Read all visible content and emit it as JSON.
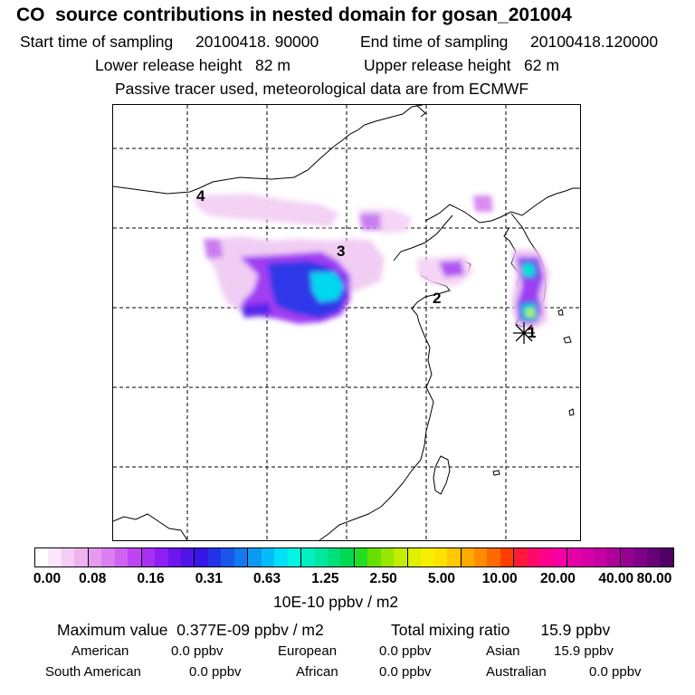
{
  "title": "CO  source contributions in nested domain for gosan_201004",
  "sampling": {
    "start_label": "Start time of sampling",
    "start_value": "20100418. 90000",
    "end_label": "End time of sampling",
    "end_value": "20100418.120000"
  },
  "release": {
    "lower": "Lower release height   82 m",
    "upper": "Upper release height   62 m"
  },
  "note": "Passive tracer used, meteorological data are from ECMWF",
  "map": {
    "labels": [
      "4",
      "3",
      "2",
      "1"
    ],
    "receptor_marker": "asterisk-icon"
  },
  "colorbar": {
    "ticks": [
      "0.00",
      "0.08",
      "0.16",
      "0.31",
      "0.63",
      "1.25",
      "2.50",
      "5.00",
      "10.00",
      "20.00",
      "40.00",
      "80.00"
    ],
    "unit": "10E-10 ppbv / m2",
    "colors": [
      "#ffffff",
      "#fbe6fb",
      "#f5ccf5",
      "#efb3f0",
      "#e79aee",
      "#dc7ff0",
      "#cf63f1",
      "#be45f3",
      "#a830f3",
      "#8e1ef2",
      "#6e15ee",
      "#4e14ea",
      "#3516e6",
      "#2531e8",
      "#1a56ea",
      "#1279ee",
      "#0b9af2",
      "#06bcf6",
      "#00e0f7",
      "#00f5e4",
      "#00f0c0",
      "#00e8a0",
      "#00e07a",
      "#00d850",
      "#22dd22",
      "#66e000",
      "#99e600",
      "#c2ec00",
      "#e0f000",
      "#f7f000",
      "#ffe100",
      "#ffc800",
      "#ffaa00",
      "#ff8c00",
      "#ff6a00",
      "#ff3d00",
      "#ff1a3c",
      "#ff0a6a",
      "#ff0090",
      "#f500a5",
      "#e600aa",
      "#d600a8",
      "#c400a2",
      "#b0009c",
      "#980094",
      "#80008a",
      "#680078",
      "#4f0062"
    ]
  },
  "footer": {
    "max_value": "Maximum value  0.377E-09 ppbv / m2",
    "total": "Total mixing ratio       15.9 ppbv",
    "american": "American",
    "american_val": "0.0 ppbv",
    "european": "European",
    "european_val": "0.0 ppbv",
    "asian": "Asian",
    "asian_val": "15.9 ppbv",
    "south_american": "South American",
    "south_american_val": "0.0 ppbv",
    "african": "African",
    "african_val": "0.0 ppbv",
    "australian": "Australian",
    "australian_val": "0.0 ppbv"
  }
}
